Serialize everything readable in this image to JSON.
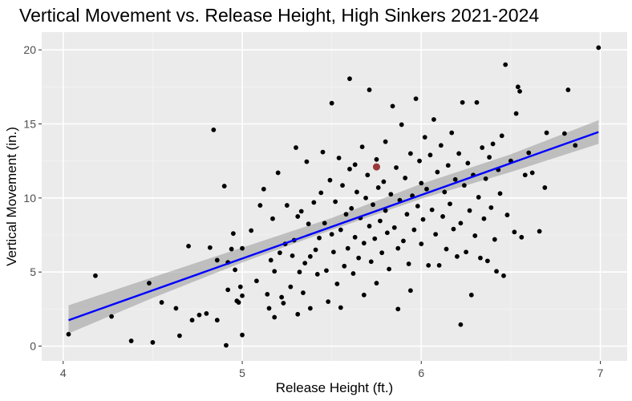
{
  "chart_data": {
    "type": "scatter",
    "title": "Vertical Movement vs. Release Height, High Sinkers 2021-2024",
    "xlabel": "Release Height (ft.)",
    "ylabel": "Vertical Movement (in.)",
    "xlim": [
      3.88,
      7.15
    ],
    "ylim": [
      -1.0,
      21.2
    ],
    "xticks": [
      4,
      5,
      6,
      7
    ],
    "yticks": [
      0,
      5,
      10,
      15,
      20
    ],
    "grid": true,
    "colors": {
      "panel": "#ebebeb",
      "grid_major": "#ffffff",
      "points": "#000000",
      "highlight": "#8b1a1a",
      "fit_line": "#0000ff",
      "confidence_band": "#999999"
    },
    "fit_line": {
      "x": [
        4.03,
        6.99
      ],
      "y": [
        1.75,
        14.45
      ]
    },
    "confidence_band": {
      "x": [
        4.03,
        4.5,
        5.0,
        5.5,
        6.0,
        6.5,
        6.99
      ],
      "lower": [
        0.85,
        3.25,
        5.65,
        7.85,
        9.95,
        11.75,
        13.65
      ],
      "upper": [
        2.75,
        4.65,
        6.65,
        8.65,
        10.95,
        12.95,
        15.25
      ]
    },
    "highlight_point": {
      "x": 5.75,
      "y": 12.1
    },
    "points": [
      {
        "x": 4.03,
        "y": 0.8
      },
      {
        "x": 4.18,
        "y": 4.75
      },
      {
        "x": 4.27,
        "y": 2.0
      },
      {
        "x": 4.38,
        "y": 0.35
      },
      {
        "x": 4.48,
        "y": 4.25
      },
      {
        "x": 4.5,
        "y": 0.25
      },
      {
        "x": 4.55,
        "y": 2.95
      },
      {
        "x": 4.63,
        "y": 2.55
      },
      {
        "x": 4.65,
        "y": 0.7
      },
      {
        "x": 4.7,
        "y": 6.75
      },
      {
        "x": 4.72,
        "y": 1.75
      },
      {
        "x": 4.76,
        "y": 2.1
      },
      {
        "x": 4.8,
        "y": 2.2
      },
      {
        "x": 4.82,
        "y": 6.65
      },
      {
        "x": 4.84,
        "y": 14.6
      },
      {
        "x": 4.86,
        "y": 5.8
      },
      {
        "x": 4.86,
        "y": 1.75
      },
      {
        "x": 4.9,
        "y": 10.8
      },
      {
        "x": 4.91,
        "y": 0.05
      },
      {
        "x": 4.92,
        "y": 5.65
      },
      {
        "x": 4.92,
        "y": 3.8
      },
      {
        "x": 4.94,
        "y": 6.55
      },
      {
        "x": 4.95,
        "y": 7.6
      },
      {
        "x": 4.96,
        "y": 5.15
      },
      {
        "x": 4.97,
        "y": 3.05
      },
      {
        "x": 4.98,
        "y": 2.95
      },
      {
        "x": 4.99,
        "y": 4.0
      },
      {
        "x": 5.0,
        "y": 6.6
      },
      {
        "x": 5.0,
        "y": 3.4
      },
      {
        "x": 5.0,
        "y": 0.75
      },
      {
        "x": 5.05,
        "y": 7.8
      },
      {
        "x": 5.08,
        "y": 4.4
      },
      {
        "x": 5.1,
        "y": 9.5
      },
      {
        "x": 5.12,
        "y": 10.6
      },
      {
        "x": 5.14,
        "y": 3.5
      },
      {
        "x": 5.15,
        "y": 2.55
      },
      {
        "x": 5.16,
        "y": 5.8
      },
      {
        "x": 5.17,
        "y": 8.6
      },
      {
        "x": 5.18,
        "y": 5.05
      },
      {
        "x": 5.18,
        "y": 1.95
      },
      {
        "x": 5.2,
        "y": 11.7
      },
      {
        "x": 5.21,
        "y": 6.3
      },
      {
        "x": 5.22,
        "y": 3.3
      },
      {
        "x": 5.23,
        "y": 2.9
      },
      {
        "x": 5.24,
        "y": 6.9
      },
      {
        "x": 5.25,
        "y": 9.5
      },
      {
        "x": 5.27,
        "y": 4.0
      },
      {
        "x": 5.28,
        "y": 6.1
      },
      {
        "x": 5.29,
        "y": 7.15
      },
      {
        "x": 5.3,
        "y": 13.4
      },
      {
        "x": 5.31,
        "y": 8.75
      },
      {
        "x": 5.31,
        "y": 2.15
      },
      {
        "x": 5.32,
        "y": 5.0
      },
      {
        "x": 5.33,
        "y": 9.1
      },
      {
        "x": 5.34,
        "y": 3.6
      },
      {
        "x": 5.35,
        "y": 5.6
      },
      {
        "x": 5.36,
        "y": 12.45
      },
      {
        "x": 5.37,
        "y": 8.25
      },
      {
        "x": 5.38,
        "y": 6.05
      },
      {
        "x": 5.38,
        "y": 2.55
      },
      {
        "x": 5.4,
        "y": 9.7
      },
      {
        "x": 5.41,
        "y": 6.5
      },
      {
        "x": 5.42,
        "y": 4.85
      },
      {
        "x": 5.43,
        "y": 7.3
      },
      {
        "x": 5.44,
        "y": 10.35
      },
      {
        "x": 5.45,
        "y": 13.1
      },
      {
        "x": 5.46,
        "y": 8.3
      },
      {
        "x": 5.47,
        "y": 5.1
      },
      {
        "x": 5.48,
        "y": 3.0
      },
      {
        "x": 5.49,
        "y": 11.2
      },
      {
        "x": 5.5,
        "y": 7.55
      },
      {
        "x": 5.5,
        "y": 16.4
      },
      {
        "x": 5.51,
        "y": 6.35
      },
      {
        "x": 5.52,
        "y": 9.75
      },
      {
        "x": 5.53,
        "y": 4.2
      },
      {
        "x": 5.54,
        "y": 12.7
      },
      {
        "x": 5.55,
        "y": 7.85
      },
      {
        "x": 5.55,
        "y": 2.6
      },
      {
        "x": 5.56,
        "y": 10.85
      },
      {
        "x": 5.57,
        "y": 5.4
      },
      {
        "x": 5.58,
        "y": 8.9
      },
      {
        "x": 5.59,
        "y": 6.6
      },
      {
        "x": 5.6,
        "y": 11.95
      },
      {
        "x": 5.6,
        "y": 18.05
      },
      {
        "x": 5.61,
        "y": 9.3
      },
      {
        "x": 5.62,
        "y": 4.9
      },
      {
        "x": 5.63,
        "y": 7.35
      },
      {
        "x": 5.63,
        "y": 12.25
      },
      {
        "x": 5.64,
        "y": 10.4
      },
      {
        "x": 5.65,
        "y": 5.95
      },
      {
        "x": 5.66,
        "y": 8.65
      },
      {
        "x": 5.67,
        "y": 13.45
      },
      {
        "x": 5.68,
        "y": 6.95
      },
      {
        "x": 5.68,
        "y": 3.45
      },
      {
        "x": 5.69,
        "y": 10.0
      },
      {
        "x": 5.7,
        "y": 11.55
      },
      {
        "x": 5.71,
        "y": 8.1
      },
      {
        "x": 5.71,
        "y": 17.3
      },
      {
        "x": 5.72,
        "y": 5.7
      },
      {
        "x": 5.73,
        "y": 9.55
      },
      {
        "x": 5.74,
        "y": 7.25
      },
      {
        "x": 5.75,
        "y": 12.6
      },
      {
        "x": 5.75,
        "y": 4.25
      },
      {
        "x": 5.76,
        "y": 10.7
      },
      {
        "x": 5.77,
        "y": 8.45
      },
      {
        "x": 5.78,
        "y": 6.3
      },
      {
        "x": 5.79,
        "y": 11.1
      },
      {
        "x": 5.8,
        "y": 9.15
      },
      {
        "x": 5.8,
        "y": 13.8
      },
      {
        "x": 5.81,
        "y": 7.65
      },
      {
        "x": 5.82,
        "y": 5.2
      },
      {
        "x": 5.83,
        "y": 10.25
      },
      {
        "x": 5.84,
        "y": 16.2
      },
      {
        "x": 5.85,
        "y": 8.0
      },
      {
        "x": 5.86,
        "y": 12.05
      },
      {
        "x": 5.87,
        "y": 6.6
      },
      {
        "x": 5.87,
        "y": 2.5
      },
      {
        "x": 5.88,
        "y": 9.85
      },
      {
        "x": 5.89,
        "y": 14.95
      },
      {
        "x": 5.9,
        "y": 7.1
      },
      {
        "x": 5.91,
        "y": 11.35
      },
      {
        "x": 5.92,
        "y": 8.9
      },
      {
        "x": 5.93,
        "y": 5.55
      },
      {
        "x": 5.94,
        "y": 13.0
      },
      {
        "x": 5.94,
        "y": 3.75
      },
      {
        "x": 5.95,
        "y": 10.15
      },
      {
        "x": 5.96,
        "y": 7.85
      },
      {
        "x": 5.97,
        "y": 16.7
      },
      {
        "x": 5.98,
        "y": 9.45
      },
      {
        "x": 5.99,
        "y": 12.5
      },
      {
        "x": 6.0,
        "y": 6.9
      },
      {
        "x": 6.0,
        "y": 11.0
      },
      {
        "x": 6.01,
        "y": 8.55
      },
      {
        "x": 6.02,
        "y": 14.1
      },
      {
        "x": 6.03,
        "y": 10.6
      },
      {
        "x": 6.04,
        "y": 5.45
      },
      {
        "x": 6.05,
        "y": 12.9
      },
      {
        "x": 6.06,
        "y": 9.2
      },
      {
        "x": 6.07,
        "y": 15.3
      },
      {
        "x": 6.08,
        "y": 7.55
      },
      {
        "x": 6.09,
        "y": 11.75
      },
      {
        "x": 6.1,
        "y": 5.45
      },
      {
        "x": 6.11,
        "y": 13.55
      },
      {
        "x": 6.12,
        "y": 8.75
      },
      {
        "x": 6.13,
        "y": 10.4
      },
      {
        "x": 6.14,
        "y": 6.55
      },
      {
        "x": 6.15,
        "y": 12.2
      },
      {
        "x": 6.16,
        "y": 9.6
      },
      {
        "x": 6.17,
        "y": 14.4
      },
      {
        "x": 6.18,
        "y": 7.9
      },
      {
        "x": 6.19,
        "y": 11.25
      },
      {
        "x": 6.2,
        "y": 6.05
      },
      {
        "x": 6.21,
        "y": 13.0
      },
      {
        "x": 6.22,
        "y": 8.3
      },
      {
        "x": 6.22,
        "y": 1.45
      },
      {
        "x": 6.23,
        "y": 16.45
      },
      {
        "x": 6.24,
        "y": 10.85
      },
      {
        "x": 6.25,
        "y": 6.35
      },
      {
        "x": 6.26,
        "y": 12.35
      },
      {
        "x": 6.27,
        "y": 9.15
      },
      {
        "x": 6.28,
        "y": 3.45
      },
      {
        "x": 6.29,
        "y": 11.55
      },
      {
        "x": 6.3,
        "y": 7.45
      },
      {
        "x": 6.31,
        "y": 16.45
      },
      {
        "x": 6.32,
        "y": 10.05
      },
      {
        "x": 6.33,
        "y": 5.95
      },
      {
        "x": 6.34,
        "y": 13.4
      },
      {
        "x": 6.35,
        "y": 8.6
      },
      {
        "x": 6.36,
        "y": 11.3
      },
      {
        "x": 6.37,
        "y": 5.75
      },
      {
        "x": 6.38,
        "y": 12.75
      },
      {
        "x": 6.39,
        "y": 9.35
      },
      {
        "x": 6.4,
        "y": 13.65
      },
      {
        "x": 6.41,
        "y": 7.2
      },
      {
        "x": 6.42,
        "y": 5.05
      },
      {
        "x": 6.43,
        "y": 11.9
      },
      {
        "x": 6.44,
        "y": 10.3
      },
      {
        "x": 6.45,
        "y": 14.2
      },
      {
        "x": 6.46,
        "y": 4.75
      },
      {
        "x": 6.47,
        "y": 19.0
      },
      {
        "x": 6.48,
        "y": 8.85
      },
      {
        "x": 6.5,
        "y": 12.5
      },
      {
        "x": 6.52,
        "y": 7.7
      },
      {
        "x": 6.53,
        "y": 15.7
      },
      {
        "x": 6.54,
        "y": 17.5
      },
      {
        "x": 6.55,
        "y": 17.2
      },
      {
        "x": 6.56,
        "y": 7.35
      },
      {
        "x": 6.58,
        "y": 11.55
      },
      {
        "x": 6.6,
        "y": 13.05
      },
      {
        "x": 6.62,
        "y": 11.7
      },
      {
        "x": 6.66,
        "y": 7.75
      },
      {
        "x": 6.69,
        "y": 10.7
      },
      {
        "x": 6.7,
        "y": 14.4
      },
      {
        "x": 6.8,
        "y": 14.35
      },
      {
        "x": 6.82,
        "y": 17.3
      },
      {
        "x": 6.86,
        "y": 13.55
      },
      {
        "x": 6.99,
        "y": 20.15
      }
    ]
  }
}
